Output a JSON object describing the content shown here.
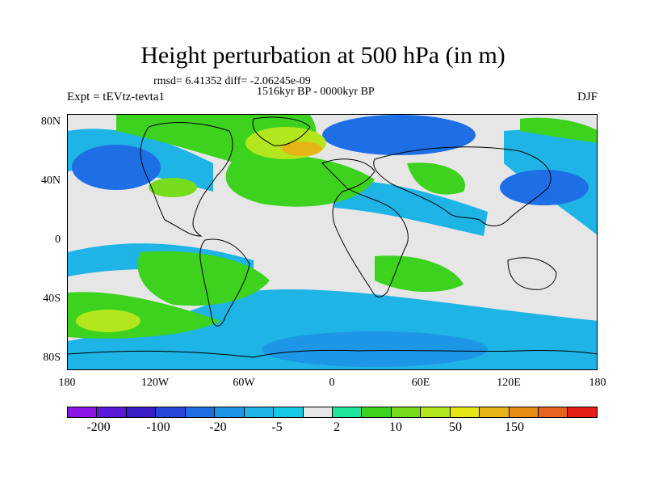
{
  "title": "Height perturbation at 500 hPa (in m)",
  "subtitle_stats": "rmsd= 6.41352 diff= -2.06245e-09",
  "subtitle_period": "1516kyr BP - 0000kyr BP",
  "left_label": "Expt = tEVtz-tevta1",
  "right_label": "DJF",
  "map": {
    "projection": "cylindrical equidistant",
    "lon_range": [
      -180,
      180
    ],
    "lat_range": [
      -90,
      90
    ],
    "coastlines": true,
    "lat_ticks": [
      "80N",
      "40N",
      "0",
      "40S",
      "80S"
    ],
    "lon_ticks": [
      "180",
      "120W",
      "60W",
      "0",
      "60E",
      "120E",
      "180"
    ]
  },
  "colorbar": {
    "colors": [
      "#8b14e6",
      "#5a18d8",
      "#3c1ec8",
      "#2846d8",
      "#1e6ee6",
      "#1e96e6",
      "#1eb4e6",
      "#14c8e6",
      "#e6e6e6",
      "#1ee69b",
      "#3cd21e",
      "#78dc1e",
      "#b4e61e",
      "#e6e614",
      "#e6b414",
      "#e68c14",
      "#e6641e",
      "#e61e14"
    ],
    "tick_labels": [
      "-200",
      "-100",
      "-20",
      "-5",
      "2",
      "10",
      "50",
      "150"
    ]
  }
}
